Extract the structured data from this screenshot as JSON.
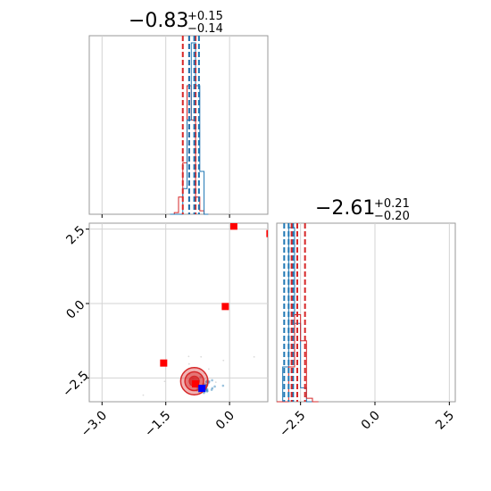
{
  "colors": {
    "red": "#d62728",
    "blue": "#1f77b4",
    "marker_red": "#ff0000",
    "marker_blue": "#0000ff",
    "grid": "#d3d3d3",
    "frame": "#9a9a9a"
  },
  "chart_data": {
    "type": "corner",
    "parameters": [
      {
        "median": "−0.83",
        "plus": "+0.15",
        "minus": "−0.14",
        "range": [
          -3.3,
          0.9
        ],
        "ticks": [
          -3.0,
          -1.5,
          0.0
        ],
        "tick_labels": [
          "−3.0",
          "−1.5",
          "0.0"
        ]
      },
      {
        "median": "−2.61",
        "plus": "+0.21",
        "minus": "−0.20",
        "range": [
          -3.3,
          2.7
        ],
        "ticks": [
          -2.5,
          0.0,
          2.5
        ],
        "tick_labels": [
          "−2.5",
          "0.0",
          "2.5"
        ]
      }
    ],
    "histograms": {
      "param1": {
        "bin_edges": [
          -1.4,
          -1.3,
          -1.2,
          -1.1,
          -1.0,
          -0.9,
          -0.8,
          -0.7,
          -0.6,
          -0.5
        ],
        "blue_counts": [
          0.0,
          0.0,
          0.0,
          0.15,
          0.55,
          1.0,
          0.75,
          0.25,
          0.0
        ],
        "red_counts": [
          0.0,
          0.01,
          0.1,
          0.3,
          0.75,
          0.55,
          0.1,
          0.02,
          0.0
        ],
        "blue_quantiles": [
          -0.95,
          -0.83,
          -0.72
        ],
        "red_quantiles": [
          -1.1,
          -0.95,
          -0.8
        ]
      },
      "param2": {
        "bin_edges": [
          -3.3,
          -3.1,
          -2.9,
          -2.7,
          -2.5,
          -2.3,
          -2.1,
          -1.9
        ],
        "blue_counts": [
          0.0,
          0.2,
          1.0,
          0.45,
          0.08,
          0.0,
          0.0
        ],
        "red_counts": [
          0.0,
          0.0,
          0.2,
          0.5,
          0.35,
          0.02,
          0.0
        ],
        "blue_quantiles": [
          -3.05,
          -2.9,
          -2.75
        ],
        "red_quantiles": [
          -2.8,
          -2.61,
          -2.35
        ]
      }
    },
    "scatter": {
      "red_contour_center": [
        -0.83,
        -2.61
      ],
      "red_contour_radii": [
        0.12,
        0.22,
        0.32
      ],
      "red_markers": [
        [
          0.1,
          2.6
        ],
        [
          -0.1,
          -0.1
        ],
        [
          -1.55,
          -2.0
        ],
        [
          0.95,
          2.35
        ],
        [
          -0.8,
          -2.7
        ]
      ],
      "blue_marker": [
        -0.65,
        -2.85
      ],
      "blue_cloud_center": [
        -0.62,
        -2.8
      ]
    }
  }
}
